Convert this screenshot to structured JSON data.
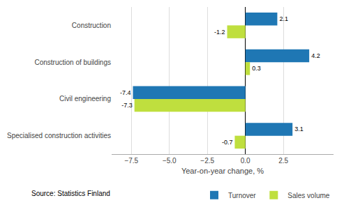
{
  "chart_data": {
    "type": "bar",
    "orientation": "horizontal",
    "categories": [
      "Construction",
      "Construction of buildings",
      "Civil engineering",
      "Specialised construction activities"
    ],
    "series": [
      {
        "name": "Turnover",
        "color": "#1F77B4",
        "values": [
          2.1,
          4.2,
          -7.4,
          3.1
        ]
      },
      {
        "name": "Sales volume",
        "color": "#BFDF3E",
        "values": [
          -1.2,
          0.3,
          -7.3,
          -0.7
        ]
      }
    ],
    "xlabel": "Year-on-year change, %",
    "xlim": [
      -8.8,
      5.8
    ],
    "xticks": [
      {
        "value": -7.5,
        "label": "−7.5"
      },
      {
        "value": -5.0,
        "label": "−5.0"
      },
      {
        "value": -2.5,
        "label": "−2.5"
      },
      {
        "value": 0.0,
        "label": "0.0"
      },
      2.5
    ],
    "grid": true,
    "data_labels": true,
    "legend": "lower right",
    "annotations": [
      "Source: Statistics Finland"
    ]
  }
}
